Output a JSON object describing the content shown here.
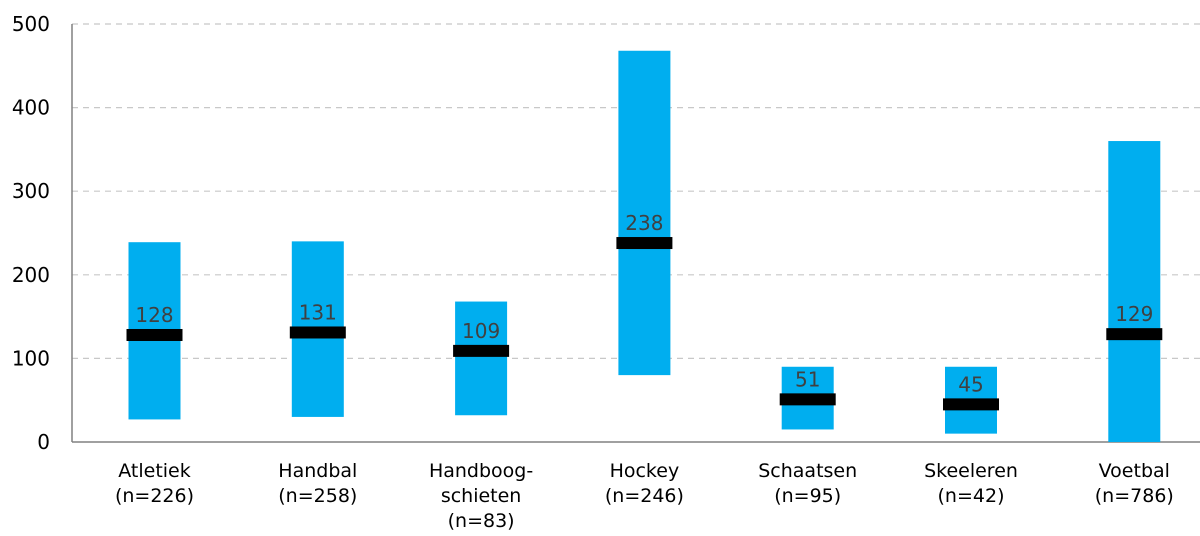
{
  "chart_data": {
    "type": "bar",
    "subtype": "floating-range-with-median",
    "title": "",
    "xlabel": "",
    "ylabel": "",
    "ylim": [
      0,
      500
    ],
    "yticks": [
      0,
      100,
      200,
      300,
      400,
      500
    ],
    "grid": true,
    "legend": "none",
    "colors": {
      "range": "#00AEEF",
      "median": "#000000",
      "grid": "#C8C8C8",
      "axis": "#808080"
    },
    "categories": [
      {
        "lines": [
          "Atletiek",
          "(n=226)"
        ],
        "low": 27,
        "high": 239,
        "median": 128
      },
      {
        "lines": [
          "Handbal",
          "(n=258)"
        ],
        "low": 30,
        "high": 240,
        "median": 131
      },
      {
        "lines": [
          "Handboog-",
          "schieten",
          "(n=83)"
        ],
        "low": 32,
        "high": 168,
        "median": 109
      },
      {
        "lines": [
          "Hockey",
          "(n=246)"
        ],
        "low": 80,
        "high": 468,
        "median": 238
      },
      {
        "lines": [
          "Schaatsen",
          "(n=95)"
        ],
        "low": 15,
        "high": 90,
        "median": 51
      },
      {
        "lines": [
          "Skeeleren",
          "(n=42)"
        ],
        "low": 10,
        "high": 90,
        "median": 45
      },
      {
        "lines": [
          "Voetbal",
          "(n=786)"
        ],
        "low": 0,
        "high": 360,
        "median": 129
      }
    ]
  }
}
